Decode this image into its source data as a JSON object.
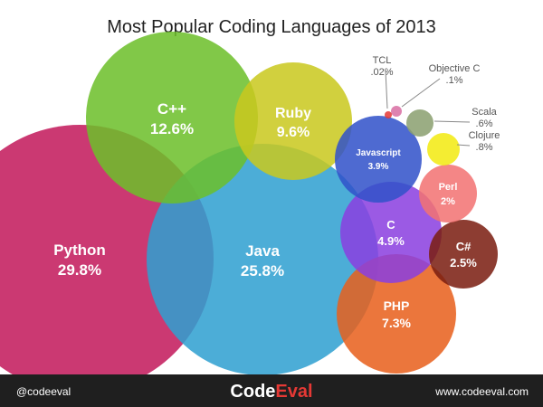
{
  "chart_data": {
    "type": "bubble",
    "title": "Most Popular Coding Languages of 2013",
    "series": [
      {
        "name": "Python",
        "value_label": "29.8%",
        "value": 29.8,
        "color": "#c2185b"
      },
      {
        "name": "Java",
        "value_label": "25.8%",
        "value": 25.8,
        "color": "#2e9fd0"
      },
      {
        "name": "C++",
        "value_label": "12.6%",
        "value": 12.6,
        "color": "#6cbf2a"
      },
      {
        "name": "Ruby",
        "value_label": "9.6%",
        "value": 9.6,
        "color": "#c9c81e"
      },
      {
        "name": "PHP",
        "value_label": "7.3%",
        "value": 7.3,
        "color": "#e8601c"
      },
      {
        "name": "C",
        "value_label": "4.9%",
        "value": 4.9,
        "color": "#8b3fe0"
      },
      {
        "name": "Javascript",
        "value_label": "3.9%",
        "value": 3.9,
        "color": "#3151c9"
      },
      {
        "name": "C#",
        "value_label": "2.5%",
        "value": 2.5,
        "color": "#7a1d10"
      },
      {
        "name": "Perl",
        "value_label": "2%",
        "value": 2.0,
        "color": "#f27272"
      },
      {
        "name": "Clojure",
        "value_label": ".8%",
        "value": 0.8,
        "color": "#f2ea10"
      },
      {
        "name": "Scala",
        "value_label": ".6%",
        "value": 0.6,
        "color": "#8aa070"
      },
      {
        "name": "Objective C",
        "value_label": ".1%",
        "value": 0.1,
        "color": "#d96fa3"
      },
      {
        "name": "TCL",
        "value_label": ".02%",
        "value": 0.02,
        "color": "#e53935"
      }
    ]
  },
  "footer": {
    "handle": "@codeeval",
    "brand_part1": "Code",
    "brand_part2": "Eval",
    "url": "www.codeeval.com",
    "bg_color": "#1f1f1f",
    "brand_accent": "#e53935"
  }
}
